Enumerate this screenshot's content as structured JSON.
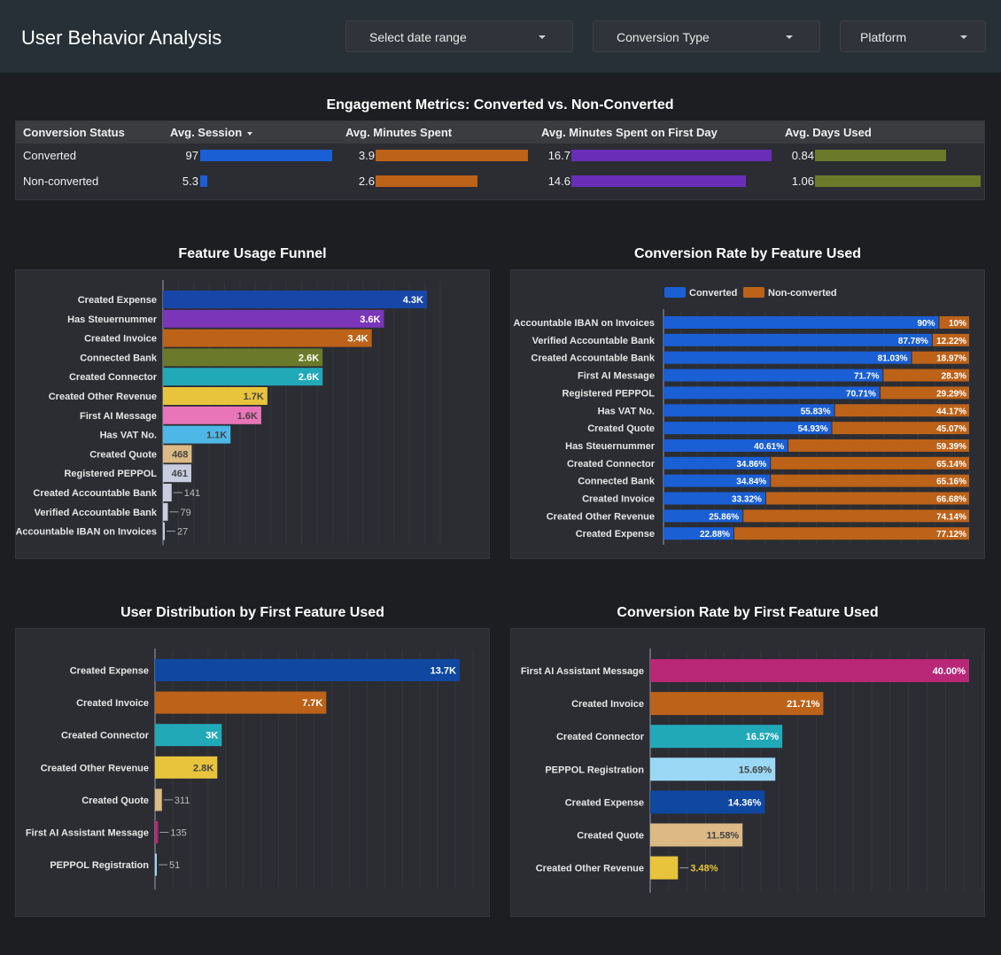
{
  "header": {
    "title": "User Behavior Analysis",
    "filters": {
      "date_range": "Select date range",
      "conversion_type": "Conversion Type",
      "platform": "Platform"
    }
  },
  "colors": {
    "blue": "#1a5fd4",
    "dark_blue": "#0f47a1",
    "purple": "#6a2db8",
    "orange": "#bd6219",
    "olive": "#6a7a2a",
    "teal": "#22a9b8",
    "yellow": "#e8c43c",
    "pink": "#e875b8",
    "light_blue": "#4db8e8",
    "tan": "#dcb985",
    "lavender": "#c0c8e0",
    "magenta": "#b82877",
    "sky": "#9ad8f5"
  },
  "engagement": {
    "title": "Engagement Metrics: Converted vs. Non-Converted",
    "columns": [
      "Conversion Status",
      "Avg. Session",
      "Avg. Minutes Spent",
      "Avg. Minutes Spent on First Day",
      "Avg. Days Used"
    ],
    "rows": [
      {
        "status": "Converted",
        "values": [
          "97",
          "3.9",
          "16.7",
          "0.84"
        ],
        "fractions": [
          1.0,
          1.0,
          1.0,
          0.79
        ]
      },
      {
        "status": "Non-converted",
        "values": [
          "5.3",
          "2.6",
          "14.6",
          "1.06"
        ],
        "fractions": [
          0.055,
          0.67,
          0.87,
          1.0
        ]
      }
    ]
  },
  "chart_data": [
    {
      "type": "bar",
      "orientation": "horizontal",
      "title": "Feature Usage Funnel",
      "categories": [
        "Created Expense",
        "Has Steuernummer",
        "Created Invoice",
        "Connected Bank",
        "Created Connector",
        "Created Other Revenue",
        "First AI Message",
        "Has VAT No.",
        "Created Quote",
        "Registered PEPPOL",
        "Created Accountable Bank",
        "Verified Accountable Bank",
        "Accountable IBAN on Invoices"
      ],
      "values": [
        4300,
        3600,
        3400,
        2600,
        2600,
        1700,
        1600,
        1100,
        468,
        461,
        141,
        79,
        27
      ],
      "labels": [
        "4.3K",
        "3.6K",
        "3.4K",
        "2.6K",
        "2.6K",
        "1.7K",
        "1.6K",
        "1.1K",
        "468",
        "461",
        "141",
        "79",
        "27"
      ],
      "colors": [
        "#1746a8",
        "#7a35b8",
        "#bd6219",
        "#6a7a2a",
        "#22a9b8",
        "#e8c43c",
        "#e875b8",
        "#4db8e8",
        "#dcb985",
        "#c8cde0",
        "#c8cde0",
        "#c8cde0",
        "#c8cde0"
      ],
      "xlim": [
        0,
        4300
      ]
    },
    {
      "type": "bar",
      "orientation": "horizontal",
      "stacked": true,
      "title": "Conversion Rate by Feature Used",
      "legend": [
        "Converted",
        "Non-converted"
      ],
      "legend_colors": [
        "#1a5fd4",
        "#bd6219"
      ],
      "categories": [
        "Accountable IBAN on Invoices",
        "Verified Accountable Bank",
        "Created Accountable Bank",
        "First AI Message",
        "Registered PEPPOL",
        "Has VAT No.",
        "Created Quote",
        "Has Steuernummer",
        "Created Connector",
        "Connected Bank",
        "Created Invoice",
        "Created Other Revenue",
        "Created Expense"
      ],
      "series": [
        {
          "name": "Converted",
          "values": [
            90,
            87.78,
            81.03,
            71.7,
            70.71,
            55.83,
            54.93,
            40.61,
            34.86,
            34.84,
            33.32,
            25.86,
            22.88
          ],
          "labels": [
            "90%",
            "87.78%",
            "81.03%",
            "71.7%",
            "70.71%",
            "55.83%",
            "54.93%",
            "40.61%",
            "34.86%",
            "34.84%",
            "33.32%",
            "25.86%",
            "22.88%"
          ]
        },
        {
          "name": "Non-converted",
          "values": [
            10,
            12.22,
            18.97,
            28.3,
            29.29,
            44.17,
            45.07,
            59.39,
            65.14,
            65.16,
            66.68,
            74.14,
            77.12
          ],
          "labels": [
            "10%",
            "12.22%",
            "18.97%",
            "28.3%",
            "29.29%",
            "44.17%",
            "45.07%",
            "59.39%",
            "65.14%",
            "65.16%",
            "66.68%",
            "74.14%",
            "77.12%"
          ]
        }
      ],
      "xlim": [
        0,
        100
      ]
    },
    {
      "type": "bar",
      "orientation": "horizontal",
      "title": "User Distribution by First Feature Used",
      "categories": [
        "Created Expense",
        "Created Invoice",
        "Created Connector",
        "Created Other Revenue",
        "Created Quote",
        "First AI Assistant Message",
        "PEPPOL Registration"
      ],
      "values": [
        13700,
        7700,
        3000,
        2800,
        311,
        135,
        51
      ],
      "labels": [
        "13.7K",
        "7.7K",
        "3K",
        "2.8K",
        "311",
        "135",
        "51"
      ],
      "colors": [
        "#0f47a1",
        "#bd6219",
        "#22a9b8",
        "#e8c43c",
        "#dcb985",
        "#b82877",
        "#9ad8f5"
      ],
      "xlim": [
        0,
        13700
      ]
    },
    {
      "type": "bar",
      "orientation": "horizontal",
      "title": "Conversion Rate by First Feature Used",
      "categories": [
        "First AI Assistant Message",
        "Created Invoice",
        "Created Connector",
        "PEPPOL Registration",
        "Created Expense",
        "Created Quote",
        "Created Other Revenue"
      ],
      "values": [
        40.0,
        21.71,
        16.57,
        15.69,
        14.36,
        11.58,
        3.48
      ],
      "labels": [
        "40.00%",
        "21.71%",
        "16.57%",
        "15.69%",
        "14.36%",
        "11.58%",
        "3.48%"
      ],
      "colors": [
        "#b82877",
        "#bd6219",
        "#22a9b8",
        "#9ad8f5",
        "#0f47a1",
        "#dcb985",
        "#e8c43c"
      ],
      "xlim": [
        0,
        40
      ]
    }
  ]
}
